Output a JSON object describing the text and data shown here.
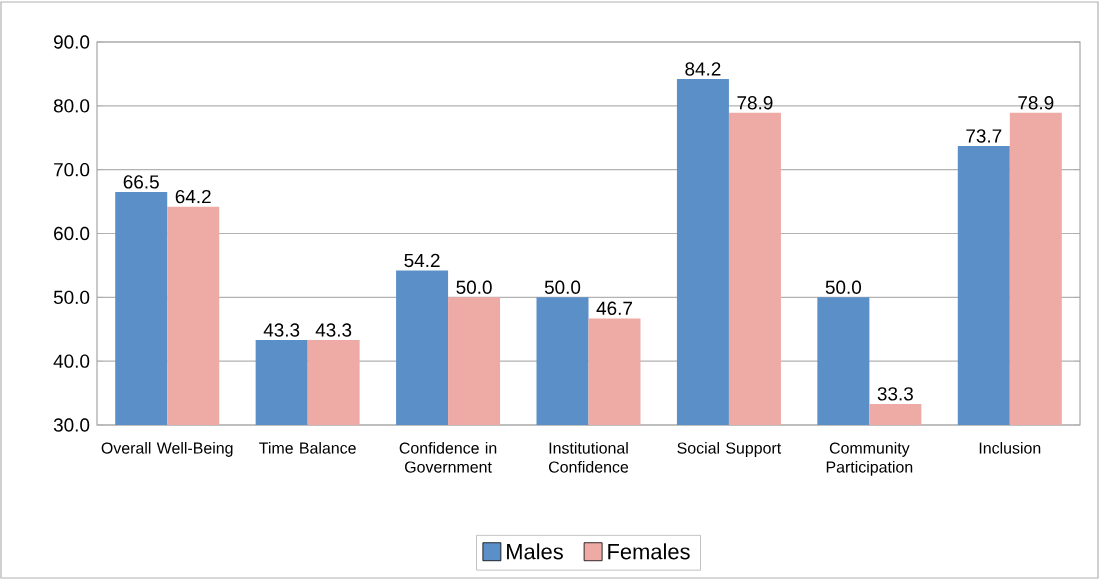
{
  "chart_data": {
    "type": "bar",
    "categories": [
      "Overall Well-Being",
      "Time Balance",
      "Confidence in Government",
      "Institutional Confidence",
      "Social Support",
      "Community Participation",
      "Inclusion"
    ],
    "series": [
      {
        "name": "Males",
        "color": "#5b8fc7",
        "values": [
          66.5,
          43.3,
          54.2,
          50.0,
          84.2,
          50.0,
          73.7
        ],
        "value_labels": [
          "66.5",
          "43.3",
          "54.2",
          "50.0",
          "84.2",
          "50.0",
          "73.7"
        ]
      },
      {
        "name": "Females",
        "color": "#eeaaa5",
        "values": [
          64.2,
          43.3,
          50.0,
          46.7,
          78.9,
          33.3,
          78.9
        ],
        "value_labels": [
          "64.2",
          "43.3",
          "50.0",
          "46.7",
          "78.9",
          "33.3",
          "78.9"
        ]
      }
    ],
    "ylim": [
      30,
      90
    ],
    "yticks": [
      {
        "value": 30,
        "label": "30.0"
      },
      {
        "value": 40,
        "label": "40.0"
      },
      {
        "value": 50,
        "label": "50.0"
      },
      {
        "value": 60,
        "label": "60.0"
      },
      {
        "value": 70,
        "label": "70.0"
      },
      {
        "value": 80,
        "label": "80.0"
      },
      {
        "value": 90,
        "label": "90.0"
      }
    ],
    "grid": "y",
    "legend": "bottom"
  }
}
